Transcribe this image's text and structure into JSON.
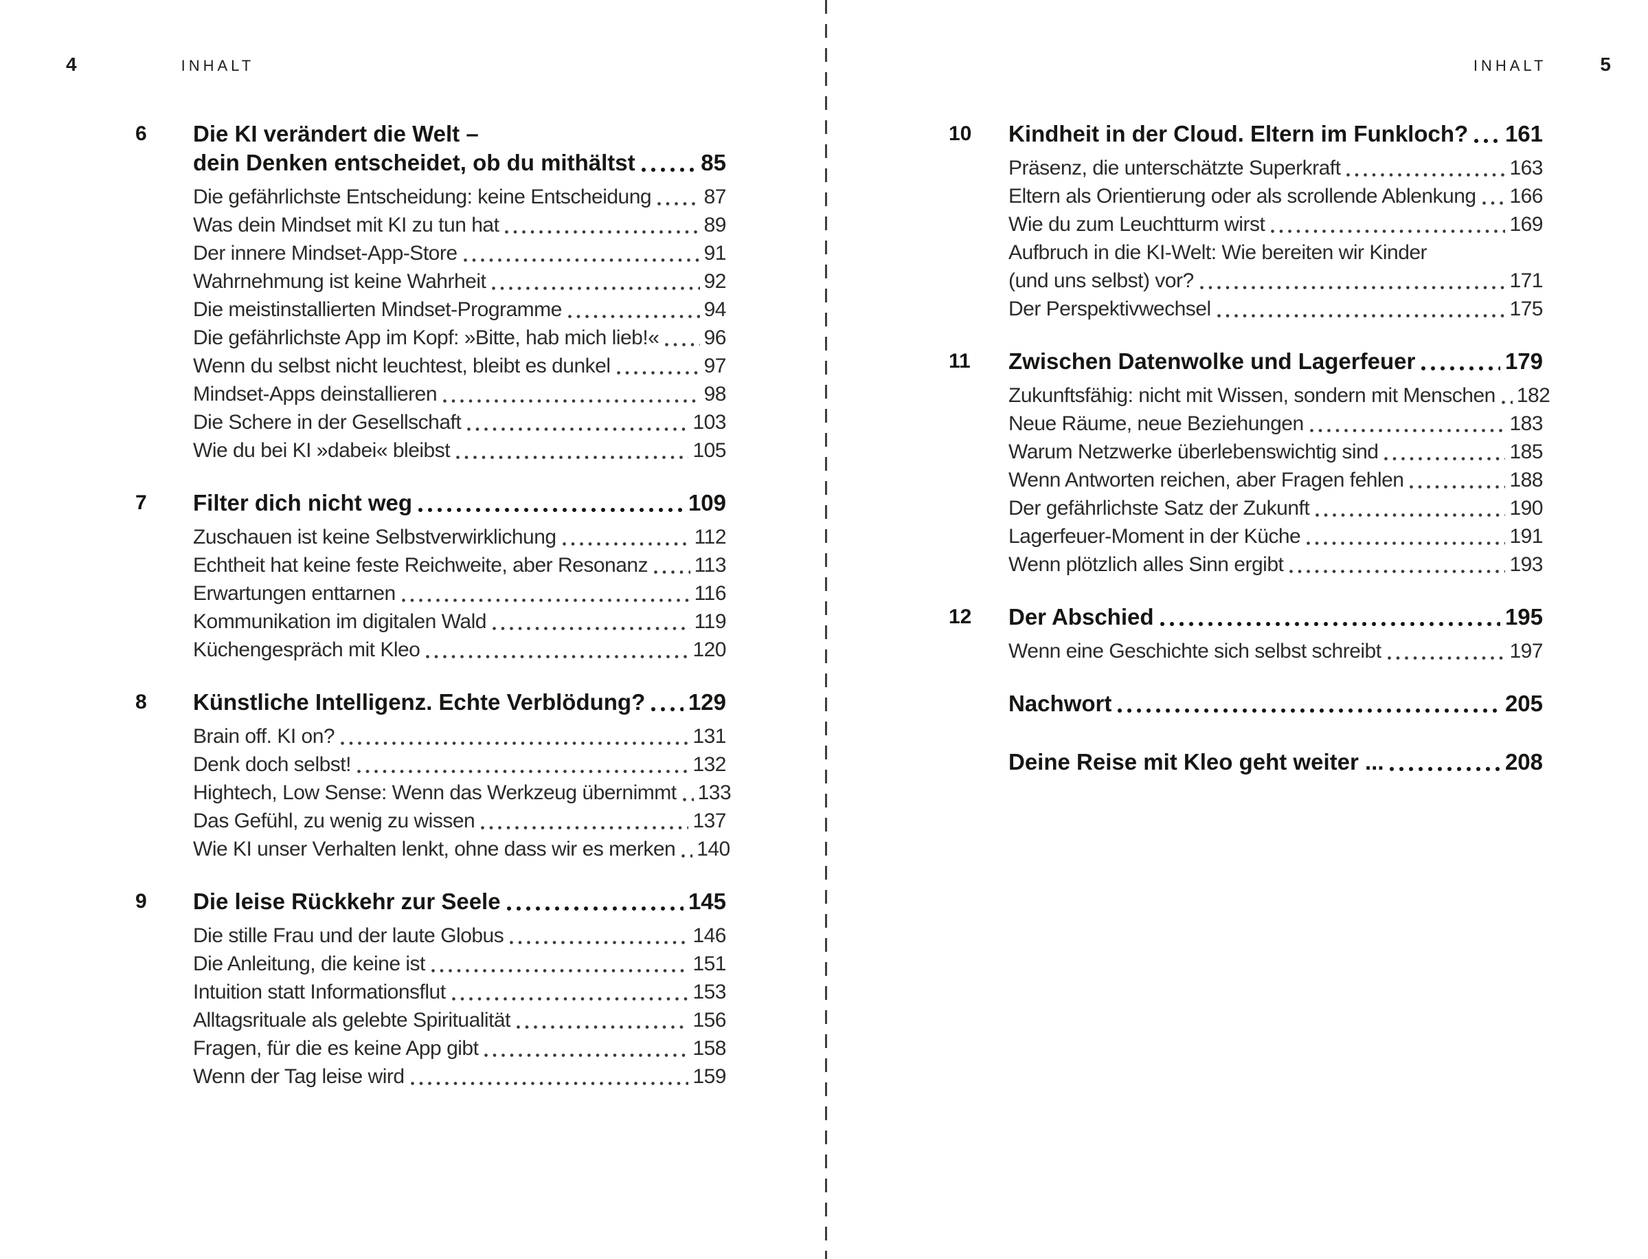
{
  "colors": {
    "background": "#ffffff",
    "text": "#1d1d1b",
    "divider": "#3e3e3e"
  },
  "left_page": {
    "page_number": "4",
    "header": "INHALT",
    "chapters": [
      {
        "number": "6",
        "title_lines": [
          "Die KI verändert die Welt –",
          "dein Denken entscheidet, ob du mithältst"
        ],
        "page": "85",
        "entries": [
          {
            "lines": [
              "Die gefährlichste Entscheidung: keine Entscheidung"
            ],
            "page": "87"
          },
          {
            "lines": [
              "Was dein Mindset mit KI zu tun hat"
            ],
            "page": "89"
          },
          {
            "lines": [
              "Der innere Mindset-App-Store"
            ],
            "page": "91"
          },
          {
            "lines": [
              "Wahrnehmung ist keine Wahrheit"
            ],
            "page": "92"
          },
          {
            "lines": [
              "Die meistinstallierten Mindset-Programme"
            ],
            "page": "94"
          },
          {
            "lines": [
              "Die gefährlichste App im Kopf: »Bitte, hab mich lieb!«"
            ],
            "page": "96"
          },
          {
            "lines": [
              "Wenn du selbst nicht leuchtest, bleibt es dunkel"
            ],
            "page": "97"
          },
          {
            "lines": [
              "Mindset-Apps deinstallieren"
            ],
            "page": "98"
          },
          {
            "lines": [
              "Die Schere in der Gesellschaft"
            ],
            "page": "103"
          },
          {
            "lines": [
              "Wie du bei KI »dabei« bleibst"
            ],
            "page": "105"
          }
        ]
      },
      {
        "number": "7",
        "title_lines": [
          "Filter dich nicht weg"
        ],
        "page": "109",
        "entries": [
          {
            "lines": [
              "Zuschauen ist keine Selbstverwirklichung"
            ],
            "page": "112"
          },
          {
            "lines": [
              "Echtheit hat keine feste Reichweite, aber Resonanz"
            ],
            "page": "113"
          },
          {
            "lines": [
              "Erwartungen enttarnen"
            ],
            "page": "116"
          },
          {
            "lines": [
              "Kommunikation im digitalen Wald"
            ],
            "page": "119"
          },
          {
            "lines": [
              "Küchengespräch mit Kleo"
            ],
            "page": "120"
          }
        ]
      },
      {
        "number": "8",
        "title_lines": [
          "Künstliche Intelligenz. Echte Verblödung?"
        ],
        "page": "129",
        "entries": [
          {
            "lines": [
              "Brain off. KI on?"
            ],
            "page": "131"
          },
          {
            "lines": [
              "Denk doch selbst!"
            ],
            "page": "132"
          },
          {
            "lines": [
              "Hightech, Low Sense: Wenn das Werkzeug übernimmt"
            ],
            "page": "133"
          },
          {
            "lines": [
              "Das Gefühl, zu wenig zu wissen"
            ],
            "page": "137"
          },
          {
            "lines": [
              "Wie KI unser Verhalten lenkt, ohne dass wir es merken"
            ],
            "page": "140"
          }
        ]
      },
      {
        "number": "9",
        "title_lines": [
          "Die leise Rückkehr zur Seele"
        ],
        "page": "145",
        "entries": [
          {
            "lines": [
              "Die stille Frau und der laute Globus"
            ],
            "page": "146"
          },
          {
            "lines": [
              "Die Anleitung, die keine ist"
            ],
            "page": "151"
          },
          {
            "lines": [
              "Intuition statt Informationsflut"
            ],
            "page": "153"
          },
          {
            "lines": [
              "Alltagsrituale als gelebte Spiritualität"
            ],
            "page": "156"
          },
          {
            "lines": [
              "Fragen, für die es keine App gibt"
            ],
            "page": "158"
          },
          {
            "lines": [
              "Wenn der Tag leise wird"
            ],
            "page": "159"
          }
        ]
      }
    ]
  },
  "right_page": {
    "page_number": "5",
    "header": "INHALT",
    "chapters": [
      {
        "number": "10",
        "title_lines": [
          "Kindheit in der Cloud. Eltern im Funkloch?"
        ],
        "page": "161",
        "entries": [
          {
            "lines": [
              "Präsenz, die unterschätzte Superkraft"
            ],
            "page": "163"
          },
          {
            "lines": [
              "Eltern als Orientierung oder als scrollende Ablenkung"
            ],
            "page": "166"
          },
          {
            "lines": [
              "Wie du zum Leuchtturm wirst"
            ],
            "page": "169"
          },
          {
            "lines": [
              "Aufbruch in die KI-Welt: Wie bereiten wir Kinder",
              "(und uns selbst) vor?"
            ],
            "page": "171"
          },
          {
            "lines": [
              "Der Perspektivwechsel"
            ],
            "page": "175"
          }
        ]
      },
      {
        "number": "11",
        "title_lines": [
          "Zwischen Datenwolke und Lagerfeuer"
        ],
        "page": "179",
        "entries": [
          {
            "lines": [
              "Zukunftsfähig: nicht mit Wissen, sondern mit Menschen"
            ],
            "page": "182"
          },
          {
            "lines": [
              "Neue Räume, neue Beziehungen"
            ],
            "page": "183"
          },
          {
            "lines": [
              "Warum Netzwerke überlebenswichtig sind"
            ],
            "page": "185"
          },
          {
            "lines": [
              "Wenn Antworten reichen, aber Fragen fehlen"
            ],
            "page": "188"
          },
          {
            "lines": [
              "Der gefährlichste Satz der Zukunft"
            ],
            "page": "190"
          },
          {
            "lines": [
              "Lagerfeuer-Moment in der Küche"
            ],
            "page": "191"
          },
          {
            "lines": [
              "Wenn plötzlich alles Sinn ergibt"
            ],
            "page": "193"
          }
        ]
      },
      {
        "number": "12",
        "title_lines": [
          "Der Abschied"
        ],
        "page": "195",
        "entries": [
          {
            "lines": [
              "Wenn eine Geschichte sich selbst schreibt"
            ],
            "page": "197"
          }
        ]
      },
      {
        "number": "",
        "title_lines": [
          "Nachwort"
        ],
        "page": "205",
        "entries": []
      },
      {
        "number": "",
        "title_lines": [
          "Deine Reise mit Kleo geht weiter ..."
        ],
        "page": "208",
        "entries": []
      }
    ]
  }
}
